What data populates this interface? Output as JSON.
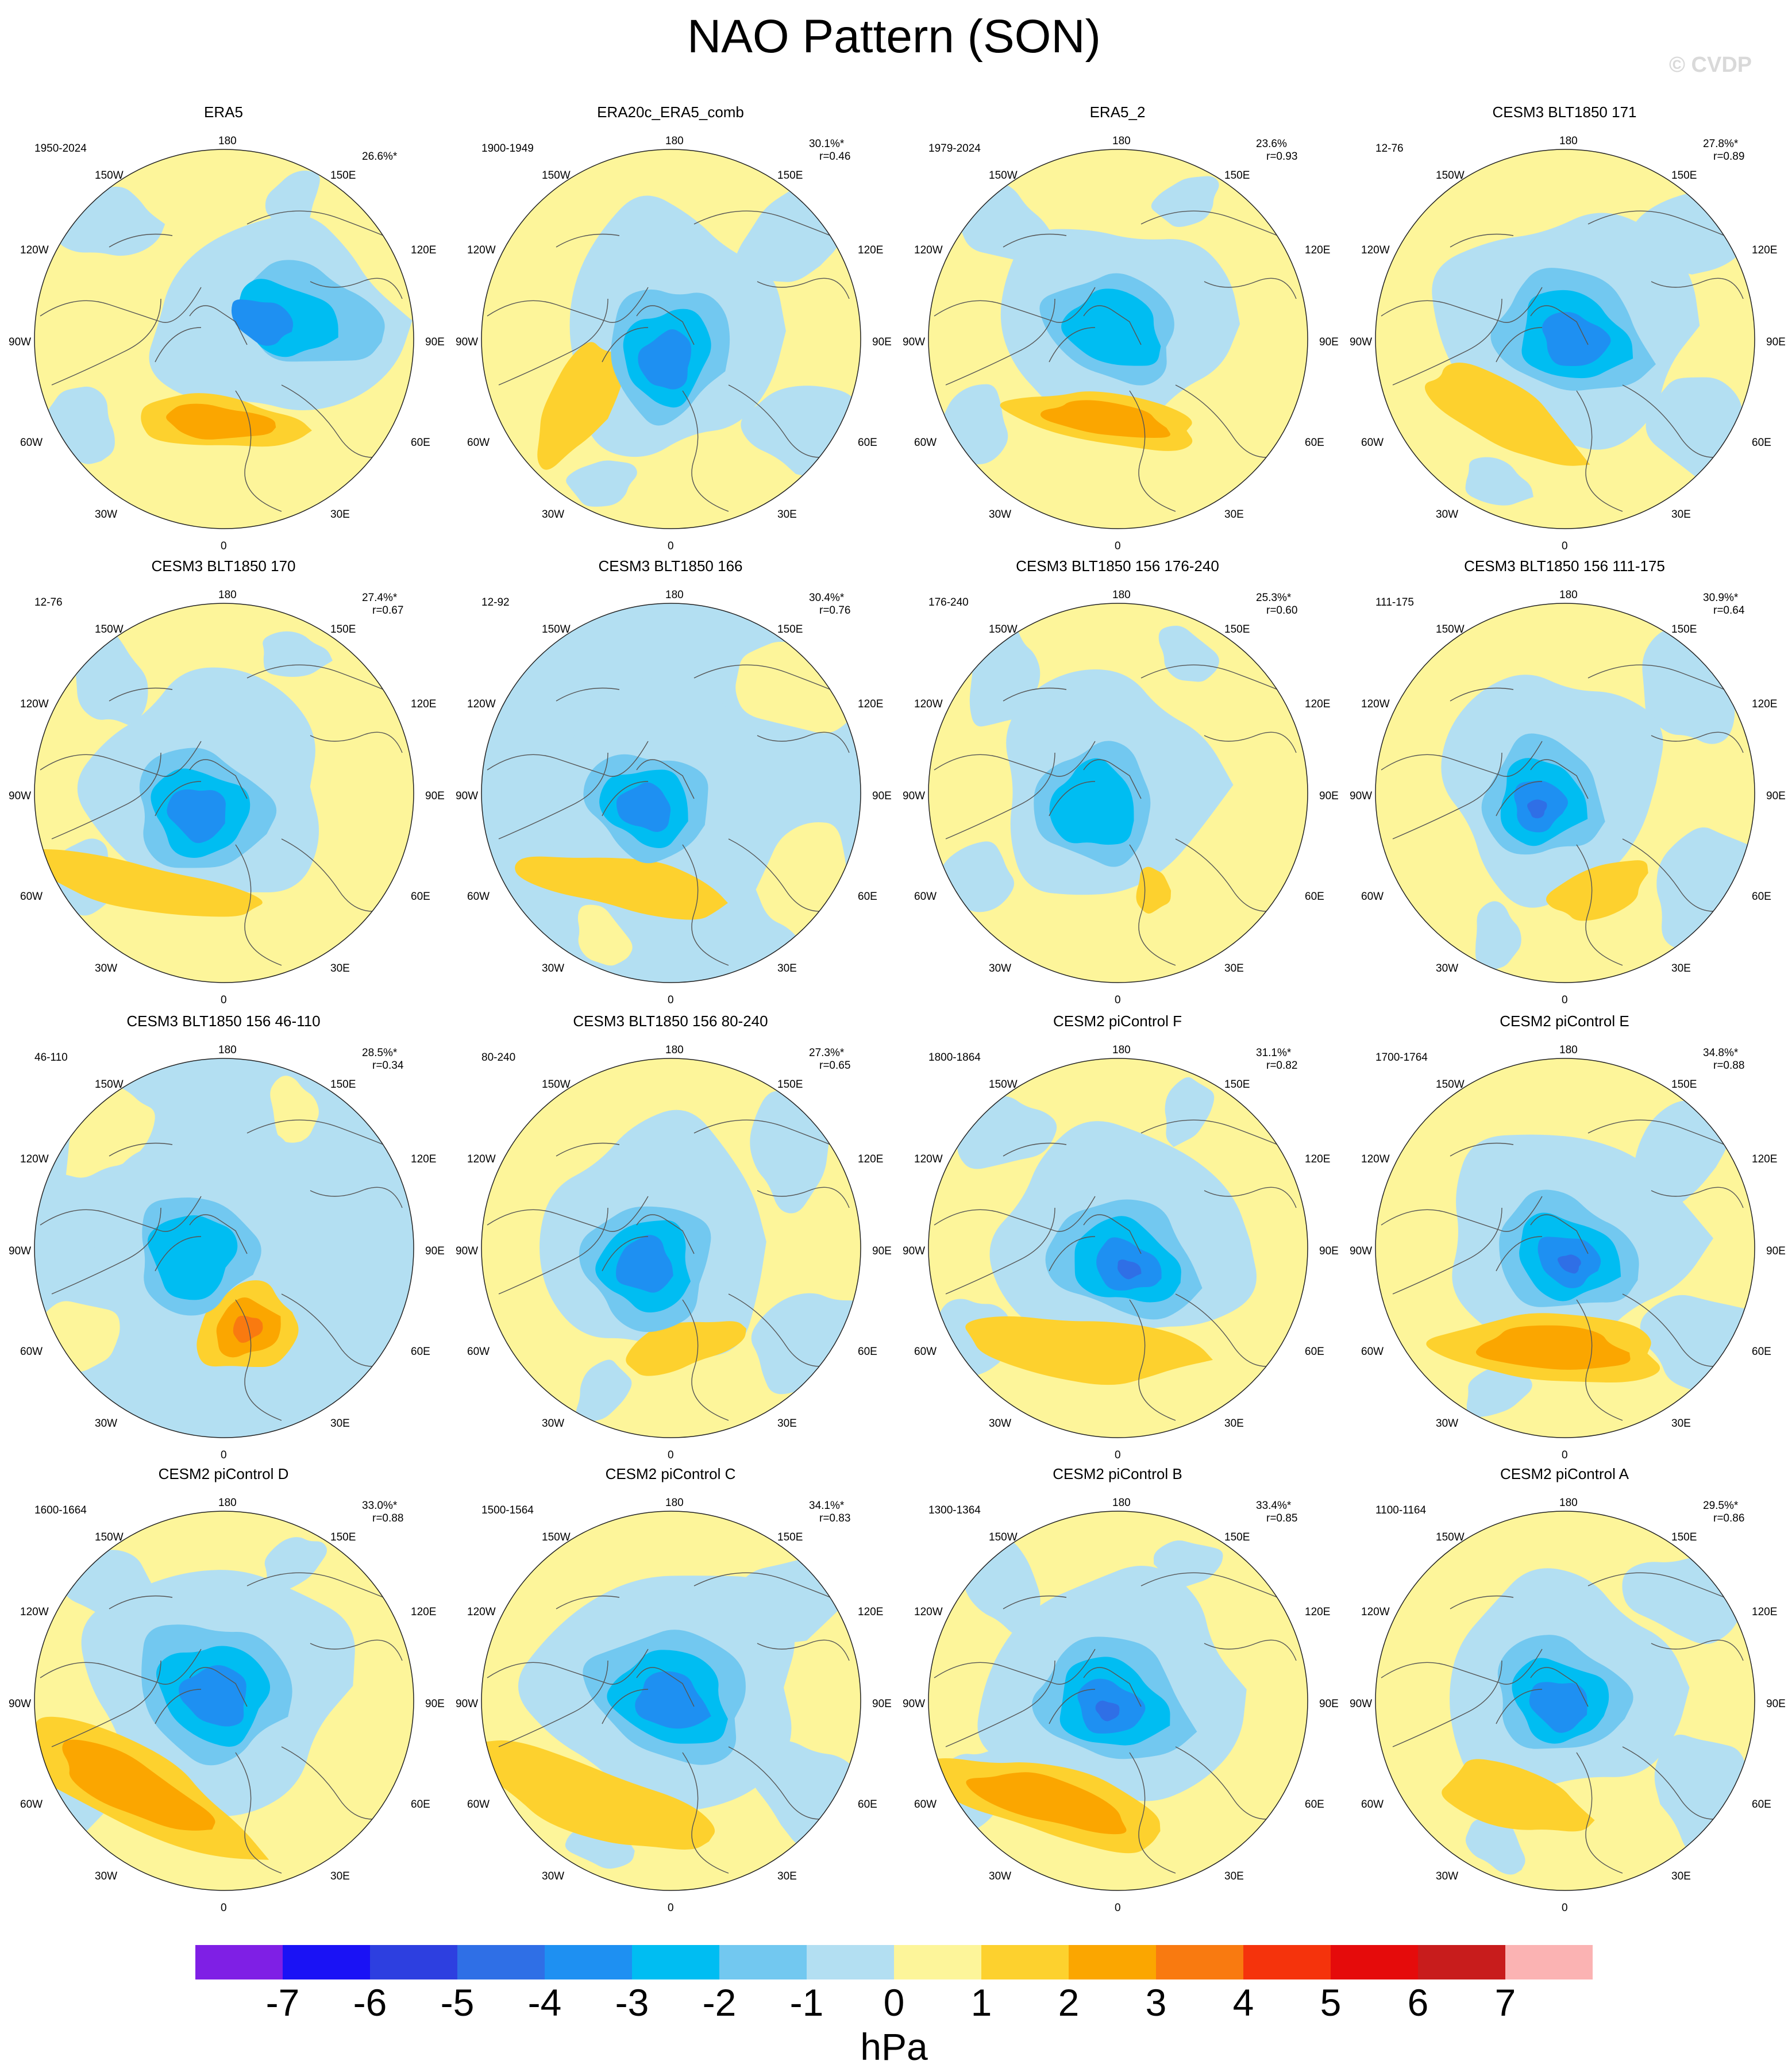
{
  "page": {
    "title": "NAO Pattern (SON)",
    "watermark": "© CVDP"
  },
  "chart_data": {
    "type": "contour-map-panels",
    "projection": "north polar stereographic",
    "field": "NAO pattern, sea level pressure anomaly",
    "longitude_labels": [
      "180",
      "150W",
      "150E",
      "120W",
      "120E",
      "90W",
      "90E",
      "60W",
      "60E",
      "30W",
      "30E",
      "0"
    ],
    "panels": [
      {
        "title": "ERA5",
        "years": "1950-2024",
        "pct": "26.6%*",
        "r": ""
      },
      {
        "title": "ERA20c_ERA5_comb",
        "years": "1900-1949",
        "pct": "30.1%*",
        "r": "r=0.46"
      },
      {
        "title": "ERA5_2",
        "years": "1979-2024",
        "pct": "23.6%",
        "r": "r=0.93"
      },
      {
        "title": "CESM3 BLT1850 171",
        "years": "12-76",
        "pct": "27.8%*",
        "r": "r=0.89"
      },
      {
        "title": "CESM3 BLT1850 170",
        "years": "12-76",
        "pct": "27.4%*",
        "r": "r=0.67"
      },
      {
        "title": "CESM3 BLT1850 166",
        "years": "12-92",
        "pct": "30.4%*",
        "r": "r=0.76"
      },
      {
        "title": "CESM3 BLT1850 156 176-240",
        "years": "176-240",
        "pct": "25.3%*",
        "r": "r=0.60"
      },
      {
        "title": "CESM3 BLT1850 156 111-175",
        "years": "111-175",
        "pct": "30.9%*",
        "r": "r=0.64"
      },
      {
        "title": "CESM3 BLT1850 156 46-110",
        "years": "46-110",
        "pct": "28.5%*",
        "r": "r=0.34"
      },
      {
        "title": "CESM3 BLT1850 156 80-240",
        "years": "80-240",
        "pct": "27.3%*",
        "r": "r=0.65"
      },
      {
        "title": "CESM2 piControl F",
        "years": "1800-1864",
        "pct": "31.1%*",
        "r": "r=0.82"
      },
      {
        "title": "CESM2 piControl E",
        "years": "1700-1764",
        "pct": "34.8%*",
        "r": "r=0.88"
      },
      {
        "title": "CESM2 piControl D",
        "years": "1600-1664",
        "pct": "33.0%*",
        "r": "r=0.88"
      },
      {
        "title": "CESM2 piControl C",
        "years": "1500-1564",
        "pct": "34.1%*",
        "r": "r=0.83"
      },
      {
        "title": "CESM2 piControl B",
        "years": "1300-1364",
        "pct": "33.4%*",
        "r": "r=0.85"
      },
      {
        "title": "CESM2 piControl A",
        "years": "1100-1164",
        "pct": "29.5%*",
        "r": "r=0.86"
      }
    ],
    "colorbar": {
      "unit": "hPa",
      "ticks": [
        "-7",
        "-6",
        "-5",
        "-4",
        "-3",
        "-2",
        "-1",
        "0",
        "1",
        "2",
        "3",
        "4",
        "5",
        "6",
        "7"
      ],
      "colors": [
        "#7f1fe5",
        "#1a12f5",
        "#2d3fe0",
        "#2f6fe6",
        "#1e90f2",
        "#00bdf2",
        "#72c8f0",
        "#b3dff2",
        "#fdf59a",
        "#fdd12e",
        "#fba600",
        "#f97a10",
        "#f5330c",
        "#e50b0b",
        "#c81c1c",
        "#fbb3b3"
      ]
    },
    "contour_colors": {
      "neg_1": "#b3dff2",
      "neg_2": "#72c8f0",
      "neg_3": "#00bdf2",
      "neg_4": "#1e90f2",
      "neg_5": "#2f6fe6",
      "pos_0": "#fdf59a",
      "pos_1": "#fdd12e",
      "pos_2": "#fba600",
      "pos_3": "#f97a10"
    }
  }
}
